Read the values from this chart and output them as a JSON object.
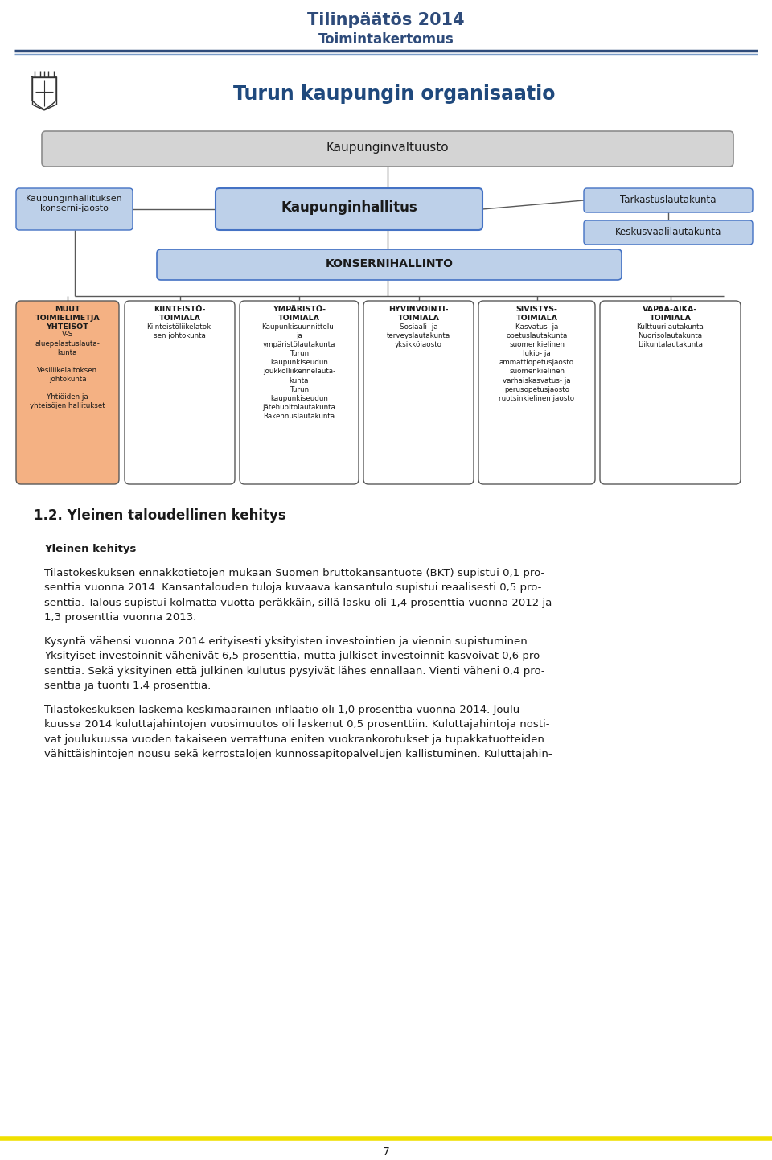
{
  "page_title": "Tilinpäätös 2014",
  "page_subtitle": "Toimintakertomus",
  "title_color": "#2E4B7A",
  "header_line_color": "#2E4B7A",
  "org_title": "Turun kaupungin organisaatio",
  "org_title_color": "#1F497D",
  "section_heading": "1.2. Yleinen taloudellinen kehitys",
  "subheading": "Yleinen kehitys",
  "page_number": "7",
  "box_bg_light_gray": "#D4D4D4",
  "box_bg_light_blue": "#BDD0E9",
  "box_bg_white": "#FFFFFF",
  "box_bg_orange": "#F4B183",
  "box_border_gray": "#8C8C8C",
  "box_border_blue": "#4472C4",
  "box_border_dark": "#595959",
  "text_dark": "#1A1A1A",
  "footer_line_color": "#F0E000",
  "bg_color": "#FFFFFF",
  "body_lines": [
    "",
    "Yleinen kehitys",
    "",
    "Tilastokeskuksen ennakkotietojen mukaan Suomen bruttokansantuote (BKT) supistui 0,1 pro-",
    "senttia vuonna 2014. Kansantalouden tuloja kuvaava kansantulo supistui reaalisesti 0,5 pro-",
    "senttia. Talous supistui kolmatta vuotta peräkkäin, sillä lasku oli 1,4 prosenttia vuonna 2012 ja",
    "1,3 prosenttia vuonna 2013.",
    "",
    "Kysyntä vähensi vuonna 2014 erityisesti yksityisten investointien ja viennin supistuminen.",
    "Yksityiset investoinnit vähenivät 6,5 prosenttia, mutta julkiset investoinnit kasvoivat 0,6 pro-",
    "senttia. Sekä yksityinen että julkinen kulutus pysyivät lähes ennallaan. Vienti väheni 0,4 pro-",
    "senttia ja tuonti 1,4 prosenttia.",
    "",
    "Tilastokeskuksen laskema keskimääräinen inflaatio oli 1,0 prosenttia vuonna 2014. Joulu-",
    "kuussa 2014 kuluttajahintojen vuosimuutos oli laskenut 0,5 prosenttiin. Kuluttajahintoja nosti-",
    "vat joulukuussa vuoden takaiseen verrattuna eniten vuokrankorotukset ja tupakkatuotteiden",
    "vähittäishintojen nousu sekä kerrostalojen kunnossapitopalvelujen kallistuminen. Kuluttajahin-"
  ]
}
